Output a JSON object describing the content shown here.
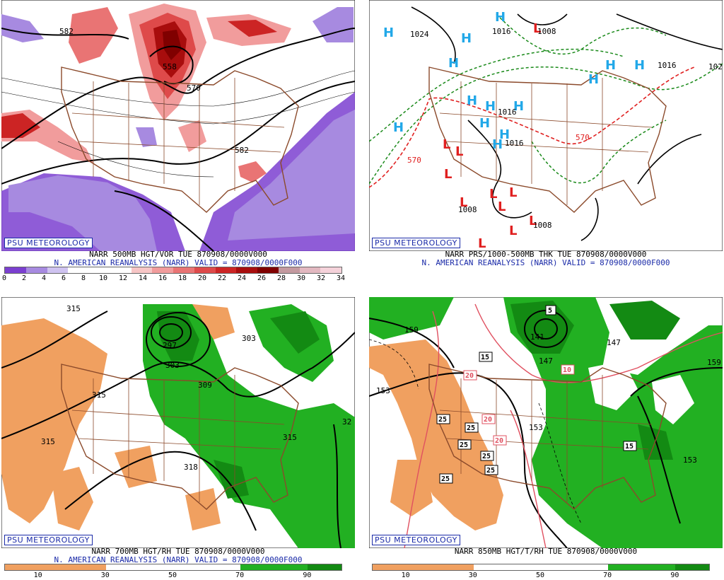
{
  "branding": "PSU METEOROLOGY",
  "subtitle": "N. AMERICAN REANALYSIS (NARR) VALID = 870908/0000F000",
  "panels": [
    {
      "title": "NARR 500MB HGT/VOR TUE 870908/0000V000",
      "contour_labels": [
        "582",
        "558",
        "570",
        "582"
      ],
      "colorbar": {
        "colors": [
          "#7b3fd0",
          "#a78ae0",
          "#cfc3f0",
          "#ffffff",
          "#ffffff",
          "#ffffff",
          "#f7c6c6",
          "#f19c9c",
          "#e97474",
          "#de4a4a",
          "#cc2424",
          "#a80d0d",
          "#800000",
          "#c49aa0",
          "#e2b8c0",
          "#f5d2da"
        ],
        "ticks": [
          "0",
          "2",
          "4",
          "6",
          "8",
          "10",
          "12",
          "14",
          "16",
          "18",
          "20",
          "22",
          "24",
          "26",
          "28",
          "30",
          "32",
          "34"
        ]
      }
    },
    {
      "title": "NARR PRS/1000-500MB THK TUE 870908/0000V000",
      "contour_labels": [
        "1024",
        "1016",
        "1008",
        "570",
        "570",
        "1016",
        "1016",
        "1008",
        "1008",
        "1016",
        "102"
      ],
      "high_marker": "H",
      "low_marker": "L"
    },
    {
      "title": "NARR 700MB HGT/RH TUE 870908/0000V000",
      "contour_labels": [
        "315",
        "297",
        "303",
        "309",
        "303",
        "315",
        "315",
        "315",
        "318",
        "32"
      ],
      "colorbar": {
        "colors": [
          "#f0a060",
          "#f0a060",
          "#f0a060",
          "#ffffff",
          "#ffffff",
          "#ffffff",
          "#ffffff",
          "#22b022",
          "#22b022",
          "#138a13"
        ],
        "ticks": [
          "10",
          "30",
          "50",
          "70",
          "90"
        ]
      }
    },
    {
      "title": "NARR 850MB HGT/T/RH TUE 870908/0000V000",
      "contour_labels": [
        "159",
        "153",
        "141",
        "147",
        "147",
        "153",
        "159",
        "153"
      ],
      "boxed_labels": [
        "5",
        "15",
        "20",
        "10",
        "20",
        "20",
        "25",
        "25",
        "25",
        "25",
        "25",
        "25",
        "15"
      ],
      "colorbar": {
        "colors": [
          "#f0a060",
          "#f0a060",
          "#f0a060",
          "#ffffff",
          "#ffffff",
          "#ffffff",
          "#ffffff",
          "#22b022",
          "#22b022",
          "#138a13"
        ],
        "ticks": [
          "10",
          "30",
          "50",
          "70",
          "90"
        ]
      }
    }
  ]
}
